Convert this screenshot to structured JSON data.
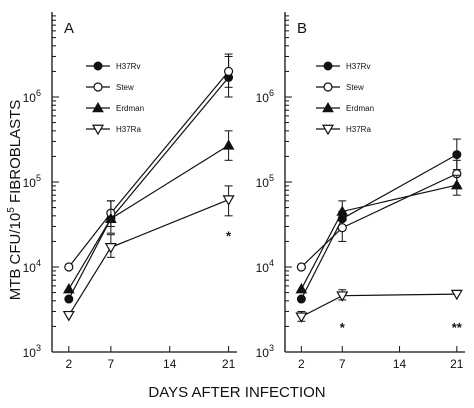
{
  "figure": {
    "ylabel": "MTB CFU/10",
    "ylabel_sup": "5",
    "ylabel_tail": " FIBROBLASTS",
    "xlabel": "DAYS AFTER INFECTION"
  },
  "chart_data": [
    {
      "type": "line",
      "panel": "A",
      "x_ticks": [
        2,
        7,
        14,
        21
      ],
      "x_tick_labels": [
        "2",
        "7",
        "14",
        "21"
      ],
      "xlim": [
        0,
        22
      ],
      "y_scale": "log",
      "ylim": [
        1000,
        10000000
      ],
      "y_ticks": [
        {
          "value": 1000,
          "base": "10",
          "exp": "3"
        },
        {
          "value": 10000,
          "base": "10",
          "exp": "4"
        },
        {
          "value": 100000,
          "base": "10",
          "exp": "5"
        },
        {
          "value": 1000000,
          "base": "10",
          "exp": "6"
        }
      ],
      "legend_position": "top-left",
      "series": [
        {
          "name": "H37Rv",
          "marker": "filled-circle",
          "x": [
            2,
            7,
            21
          ],
          "y": [
            4200,
            37000,
            1700000
          ],
          "err_hi": [
            null,
            null,
            3000000
          ],
          "err_lo": [
            null,
            null,
            1000000
          ]
        },
        {
          "name": "Stew",
          "marker": "open-circle",
          "x": [
            2,
            7,
            21
          ],
          "y": [
            10000,
            43000,
            2000000
          ],
          "err_hi": [
            null,
            60000,
            3200000
          ],
          "err_lo": [
            null,
            30000,
            1300000
          ]
        },
        {
          "name": "Erdman",
          "marker": "filled-triangle",
          "x": [
            2,
            7,
            21
          ],
          "y": [
            5500,
            37000,
            270000
          ],
          "err_hi": [
            null,
            60000,
            400000
          ],
          "err_lo": [
            null,
            25000,
            180000
          ]
        },
        {
          "name": "H37Ra",
          "marker": "open-triangle-down",
          "x": [
            2,
            7,
            21
          ],
          "y": [
            2700,
            17000,
            62000
          ],
          "err_hi": [
            null,
            24000,
            90000
          ],
          "err_lo": [
            null,
            13000,
            40000
          ]
        }
      ],
      "annotations": [
        {
          "text": "*",
          "x": 21,
          "y": 26000
        }
      ]
    },
    {
      "type": "line",
      "panel": "B",
      "x_ticks": [
        2,
        7,
        14,
        21
      ],
      "x_tick_labels": [
        "2",
        "7",
        "14",
        "21"
      ],
      "xlim": [
        0,
        22
      ],
      "y_scale": "log",
      "ylim": [
        1000,
        10000000
      ],
      "y_ticks": [
        {
          "value": 1000,
          "base": "10",
          "exp": "3"
        },
        {
          "value": 10000,
          "base": "10",
          "exp": "4"
        },
        {
          "value": 100000,
          "base": "10",
          "exp": "5"
        },
        {
          "value": 1000000,
          "base": "10",
          "exp": "6"
        }
      ],
      "legend_position": "top-left",
      "series": [
        {
          "name": "H37Rv",
          "marker": "filled-circle",
          "x": [
            2,
            7,
            21
          ],
          "y": [
            4200,
            37000,
            210000
          ],
          "err_hi": [
            null,
            null,
            320000
          ],
          "err_lo": [
            null,
            null,
            140000
          ]
        },
        {
          "name": "Stew",
          "marker": "open-circle",
          "x": [
            2,
            7,
            21
          ],
          "y": [
            10000,
            29000,
            125000
          ],
          "err_hi": [
            null,
            45000,
            180000
          ],
          "err_lo": [
            null,
            20000,
            90000
          ]
        },
        {
          "name": "Erdman",
          "marker": "filled-triangle",
          "x": [
            2,
            7,
            21
          ],
          "y": [
            5500,
            45000,
            92000
          ],
          "err_hi": [
            null,
            60000,
            120000
          ],
          "err_lo": [
            null,
            35000,
            70000
          ]
        },
        {
          "name": "H37Ra",
          "marker": "open-triangle-down",
          "x": [
            2,
            7,
            21
          ],
          "y": [
            2600,
            4600,
            4800
          ],
          "err_hi": [
            3000,
            5400,
            null
          ],
          "err_lo": [
            2300,
            4100,
            null
          ]
        }
      ],
      "annotations": [
        {
          "text": "*",
          "x": 7,
          "y": 2200
        },
        {
          "text": "**",
          "x": 21,
          "y": 2200
        }
      ]
    }
  ]
}
